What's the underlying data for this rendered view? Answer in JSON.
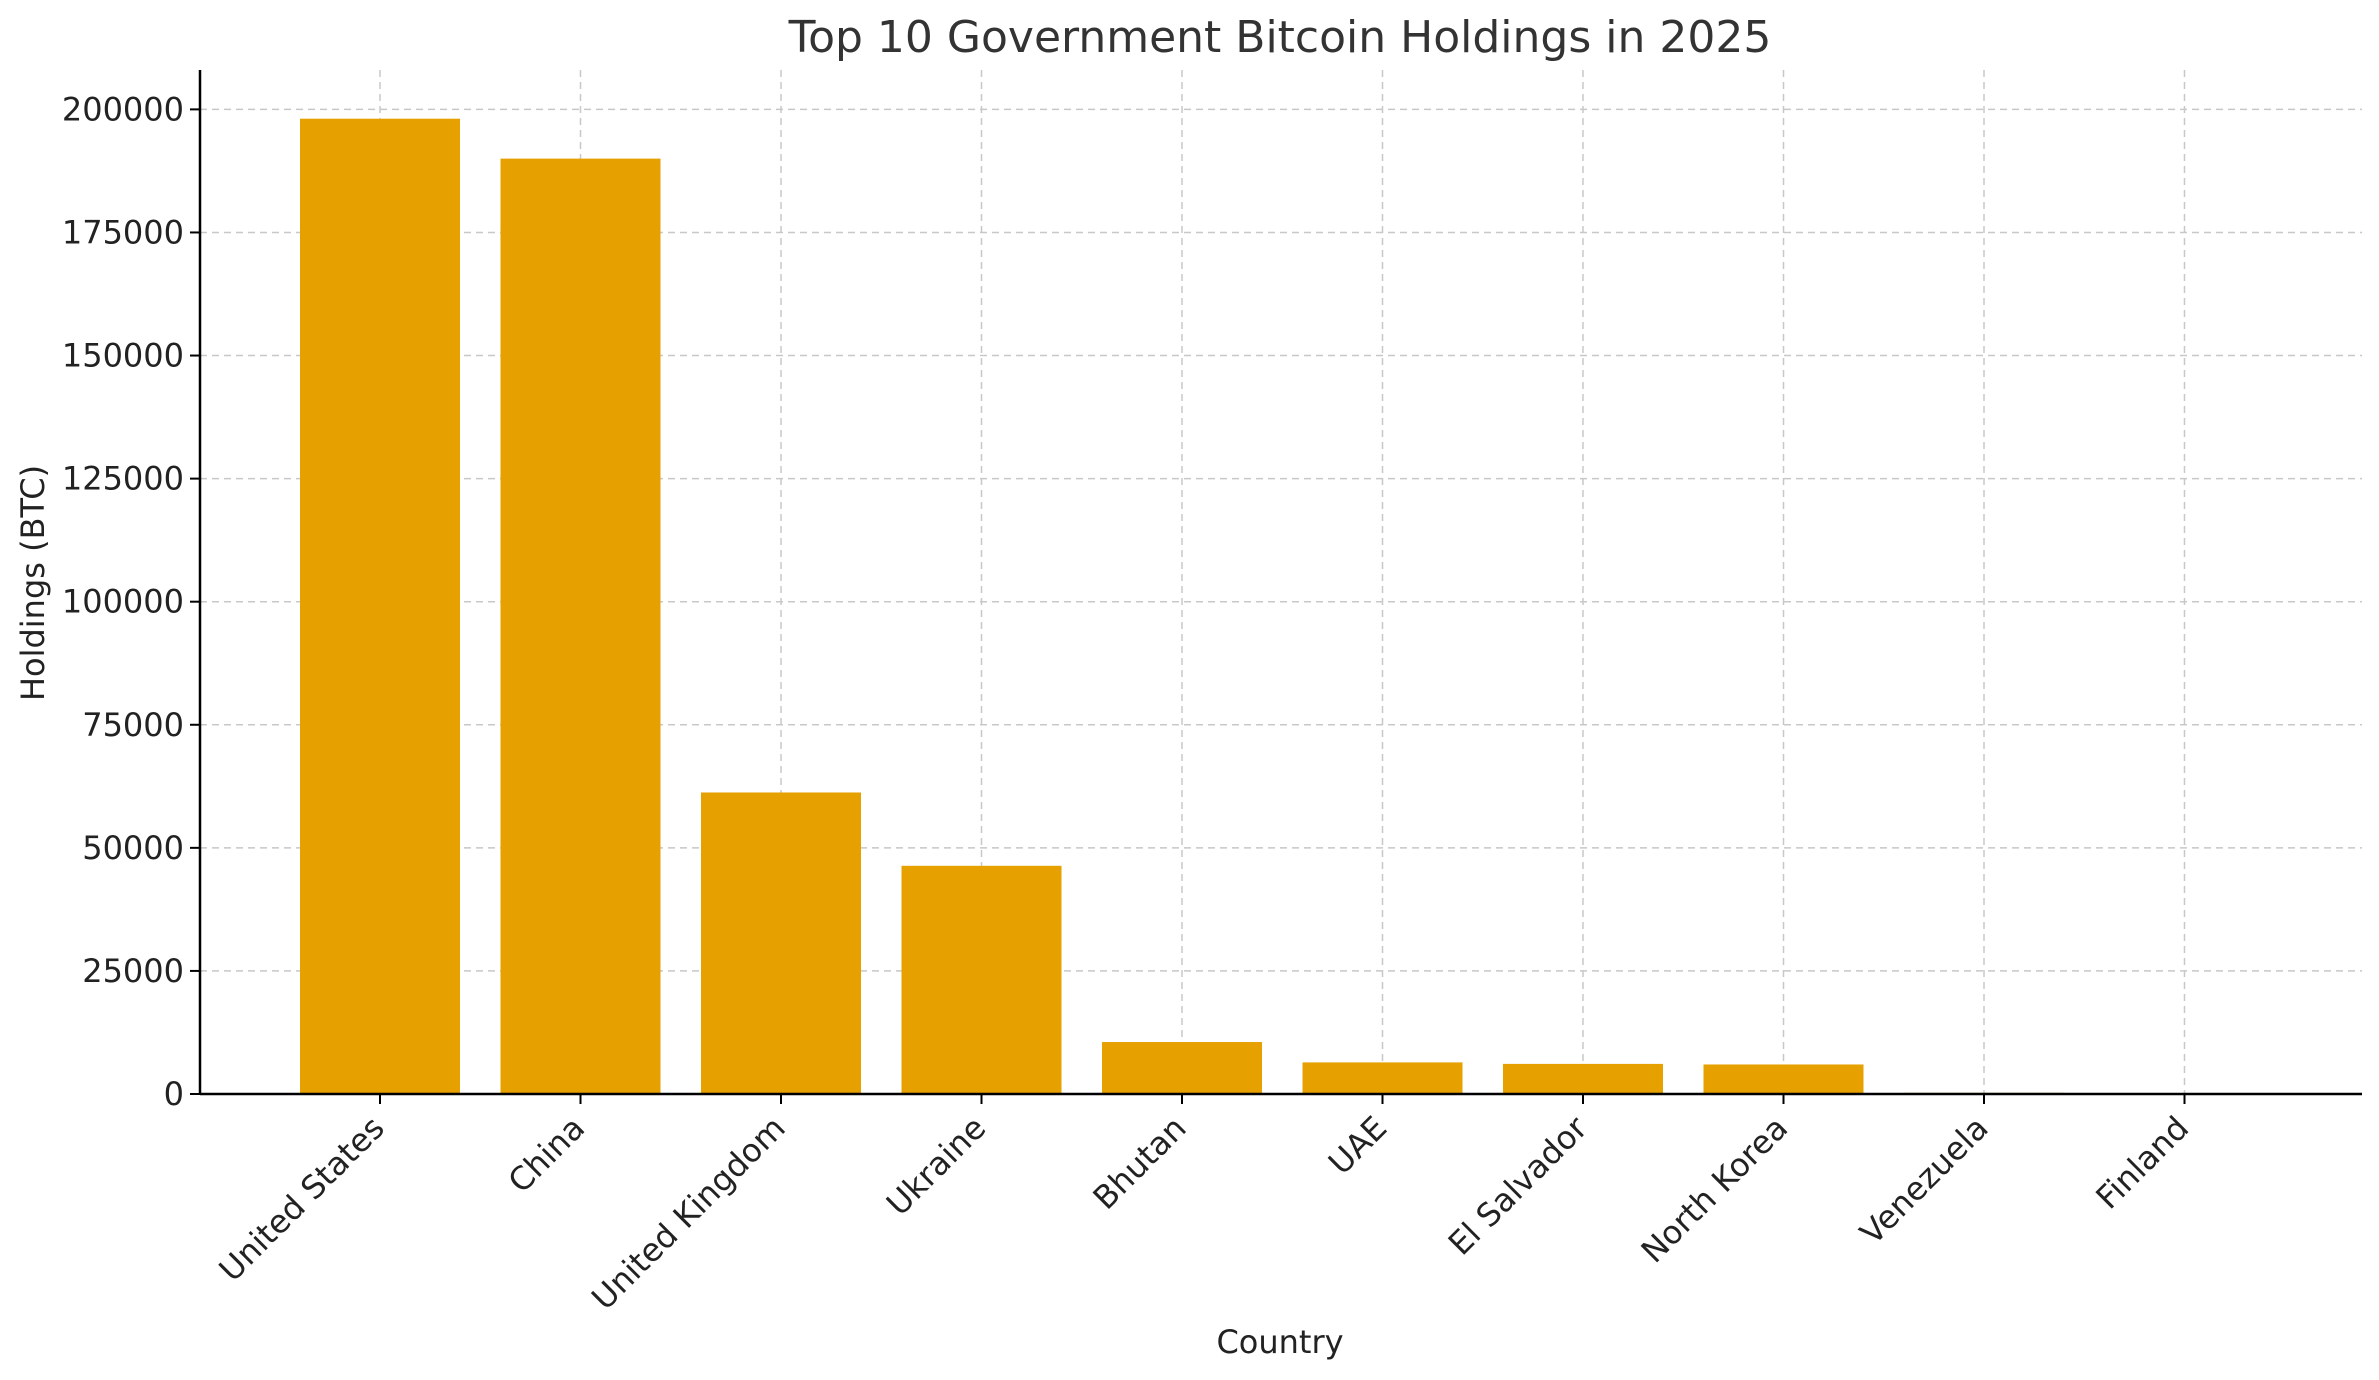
{
  "chart_data": {
    "type": "bar",
    "title": "Top 10 Government Bitcoin Holdings in 2025",
    "xlabel": "Country",
    "ylabel": "Holdings (BTC)",
    "categories": [
      "United States",
      "China",
      "United Kingdom",
      "Ukraine",
      "Bhutan",
      "UAE",
      "El Salvador",
      "North Korea",
      "Venezuela",
      "Finland"
    ],
    "values": [
      198109,
      190000,
      61245,
      46351,
      10556,
      6420,
      6117,
      6000,
      240,
      90
    ],
    "ylim": [
      0,
      208000
    ],
    "yticks": [
      0,
      25000,
      50000,
      75000,
      100000,
      125000,
      150000,
      175000,
      200000
    ],
    "bar_color": "#E6A000",
    "grid": true,
    "legend": "none"
  }
}
